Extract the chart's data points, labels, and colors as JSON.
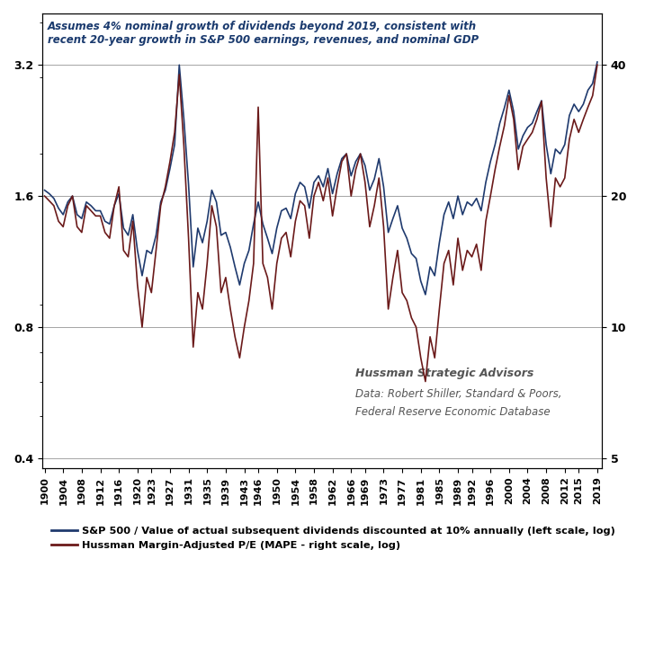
{
  "title_annotation": "Assumes 4% nominal growth of dividends beyond 2019, consistent with\nrecent 20-year growth in S&P 500 earnings, revenues, and nominal GDP",
  "watermark_line1": "Hussman Strategic Advisors",
  "watermark_line2": "Data: Robert Shiller, Standard & Poors,",
  "watermark_line3": "Federal Reserve Economic Database",
  "left_yticks": [
    0.4,
    0.8,
    1.6,
    3.2
  ],
  "right_yticks": [
    5,
    10,
    20,
    40
  ],
  "ylim_left": [
    0.38,
    4.2
  ],
  "ylim_right": [
    4.75,
    52.5
  ],
  "xtick_years": [
    1900,
    1904,
    1908,
    1912,
    1916,
    1920,
    1923,
    1927,
    1931,
    1935,
    1939,
    1943,
    1946,
    1950,
    1954,
    1958,
    1962,
    1966,
    1969,
    1973,
    1977,
    1981,
    1985,
    1989,
    1992,
    1996,
    2000,
    2004,
    2008,
    2012,
    2015,
    2019
  ],
  "sp500_color": "#1f3a6e",
  "mape_color": "#6b1a1a",
  "legend1": "S&P 500 / Value of actual subsequent dividends discounted at 10% annually (left scale, log)",
  "legend2": "Hussman Margin-Adjusted P/E (MAPE - right scale, log)",
  "sp500_ratio": {
    "years": [
      1900,
      1901,
      1902,
      1903,
      1904,
      1905,
      1906,
      1907,
      1908,
      1909,
      1910,
      1911,
      1912,
      1913,
      1914,
      1915,
      1916,
      1917,
      1918,
      1919,
      1920,
      1921,
      1922,
      1923,
      1924,
      1925,
      1926,
      1927,
      1928,
      1929,
      1930,
      1931,
      1932,
      1933,
      1934,
      1935,
      1936,
      1937,
      1938,
      1939,
      1940,
      1941,
      1942,
      1943,
      1944,
      1945,
      1946,
      1947,
      1948,
      1949,
      1950,
      1951,
      1952,
      1953,
      1954,
      1955,
      1956,
      1957,
      1958,
      1959,
      1960,
      1961,
      1962,
      1963,
      1964,
      1965,
      1966,
      1967,
      1968,
      1969,
      1970,
      1971,
      1972,
      1973,
      1974,
      1975,
      1976,
      1977,
      1978,
      1979,
      1980,
      1981,
      1982,
      1983,
      1984,
      1985,
      1986,
      1987,
      1988,
      1989,
      1990,
      1991,
      1992,
      1993,
      1994,
      1995,
      1996,
      1997,
      1998,
      1999,
      2000,
      2001,
      2002,
      2003,
      2004,
      2005,
      2006,
      2007,
      2008,
      2009,
      2010,
      2011,
      2012,
      2013,
      2014,
      2015,
      2016,
      2017,
      2018,
      2019
    ],
    "values": [
      1.65,
      1.62,
      1.58,
      1.5,
      1.45,
      1.55,
      1.6,
      1.45,
      1.42,
      1.55,
      1.52,
      1.48,
      1.48,
      1.4,
      1.38,
      1.52,
      1.62,
      1.35,
      1.3,
      1.45,
      1.2,
      1.05,
      1.2,
      1.18,
      1.3,
      1.55,
      1.65,
      1.85,
      2.1,
      3.2,
      2.4,
      1.7,
      1.1,
      1.35,
      1.25,
      1.4,
      1.65,
      1.55,
      1.3,
      1.32,
      1.22,
      1.1,
      1.0,
      1.12,
      1.2,
      1.38,
      1.55,
      1.38,
      1.28,
      1.18,
      1.35,
      1.48,
      1.5,
      1.42,
      1.62,
      1.72,
      1.68,
      1.5,
      1.72,
      1.78,
      1.68,
      1.85,
      1.62,
      1.8,
      1.95,
      2.0,
      1.78,
      1.92,
      2.0,
      1.88,
      1.65,
      1.75,
      1.95,
      1.68,
      1.32,
      1.42,
      1.52,
      1.35,
      1.28,
      1.18,
      1.15,
      1.02,
      0.95,
      1.1,
      1.05,
      1.25,
      1.45,
      1.55,
      1.42,
      1.6,
      1.45,
      1.55,
      1.52,
      1.58,
      1.48,
      1.72,
      1.92,
      2.1,
      2.35,
      2.55,
      2.8,
      2.5,
      2.05,
      2.2,
      2.3,
      2.35,
      2.5,
      2.65,
      2.1,
      1.8,
      2.05,
      2.0,
      2.1,
      2.45,
      2.6,
      2.5,
      2.6,
      2.8,
      2.9,
      3.25
    ]
  },
  "mape": {
    "years": [
      1900,
      1901,
      1902,
      1903,
      1904,
      1905,
      1906,
      1907,
      1908,
      1909,
      1910,
      1911,
      1912,
      1913,
      1914,
      1915,
      1916,
      1917,
      1918,
      1919,
      1920,
      1921,
      1922,
      1923,
      1924,
      1925,
      1926,
      1927,
      1928,
      1929,
      1930,
      1931,
      1932,
      1933,
      1934,
      1935,
      1936,
      1937,
      1938,
      1939,
      1940,
      1941,
      1942,
      1943,
      1944,
      1945,
      1946,
      1947,
      1948,
      1949,
      1950,
      1951,
      1952,
      1953,
      1954,
      1955,
      1956,
      1957,
      1958,
      1959,
      1960,
      1961,
      1962,
      1963,
      1964,
      1965,
      1966,
      1967,
      1968,
      1969,
      1970,
      1971,
      1972,
      1973,
      1974,
      1975,
      1976,
      1977,
      1978,
      1979,
      1980,
      1981,
      1982,
      1983,
      1984,
      1985,
      1986,
      1987,
      1988,
      1989,
      1990,
      1991,
      1992,
      1993,
      1994,
      1995,
      1996,
      1997,
      1998,
      1999,
      2000,
      2001,
      2002,
      2003,
      2004,
      2005,
      2006,
      2007,
      2008,
      2009,
      2010,
      2011,
      2012,
      2013,
      2014,
      2015,
      2016,
      2017,
      2018,
      2019
    ],
    "values": [
      20,
      19.5,
      19,
      17.5,
      17,
      19,
      20,
      17,
      16.5,
      19,
      18.5,
      18,
      18,
      16.5,
      16,
      19,
      21,
      15,
      14.5,
      17.5,
      12.5,
      10,
      13,
      12,
      15,
      19,
      21,
      24,
      28,
      38,
      26,
      16,
      9,
      12,
      11,
      14,
      19,
      17,
      12,
      13,
      11,
      9.5,
      8.5,
      10,
      11.5,
      14,
      32,
      14,
      13,
      11,
      14,
      16,
      16.5,
      14.5,
      17.5,
      19.5,
      19,
      16,
      20,
      21.5,
      19.5,
      22,
      18,
      21,
      24,
      25,
      20,
      23,
      25,
      21.5,
      17,
      19,
      22,
      17,
      11,
      13,
      15,
      12,
      11.5,
      10.5,
      10,
      8.5,
      7.5,
      9.5,
      8.5,
      11,
      14,
      15,
      12.5,
      16,
      13.5,
      15,
      14.5,
      15.5,
      13.5,
      17.5,
      20,
      23,
      26,
      29,
      34,
      30,
      23,
      26,
      27,
      28,
      30,
      33,
      22,
      17,
      22,
      21,
      22,
      27,
      30,
      28,
      30,
      32,
      34,
      40
    ]
  }
}
